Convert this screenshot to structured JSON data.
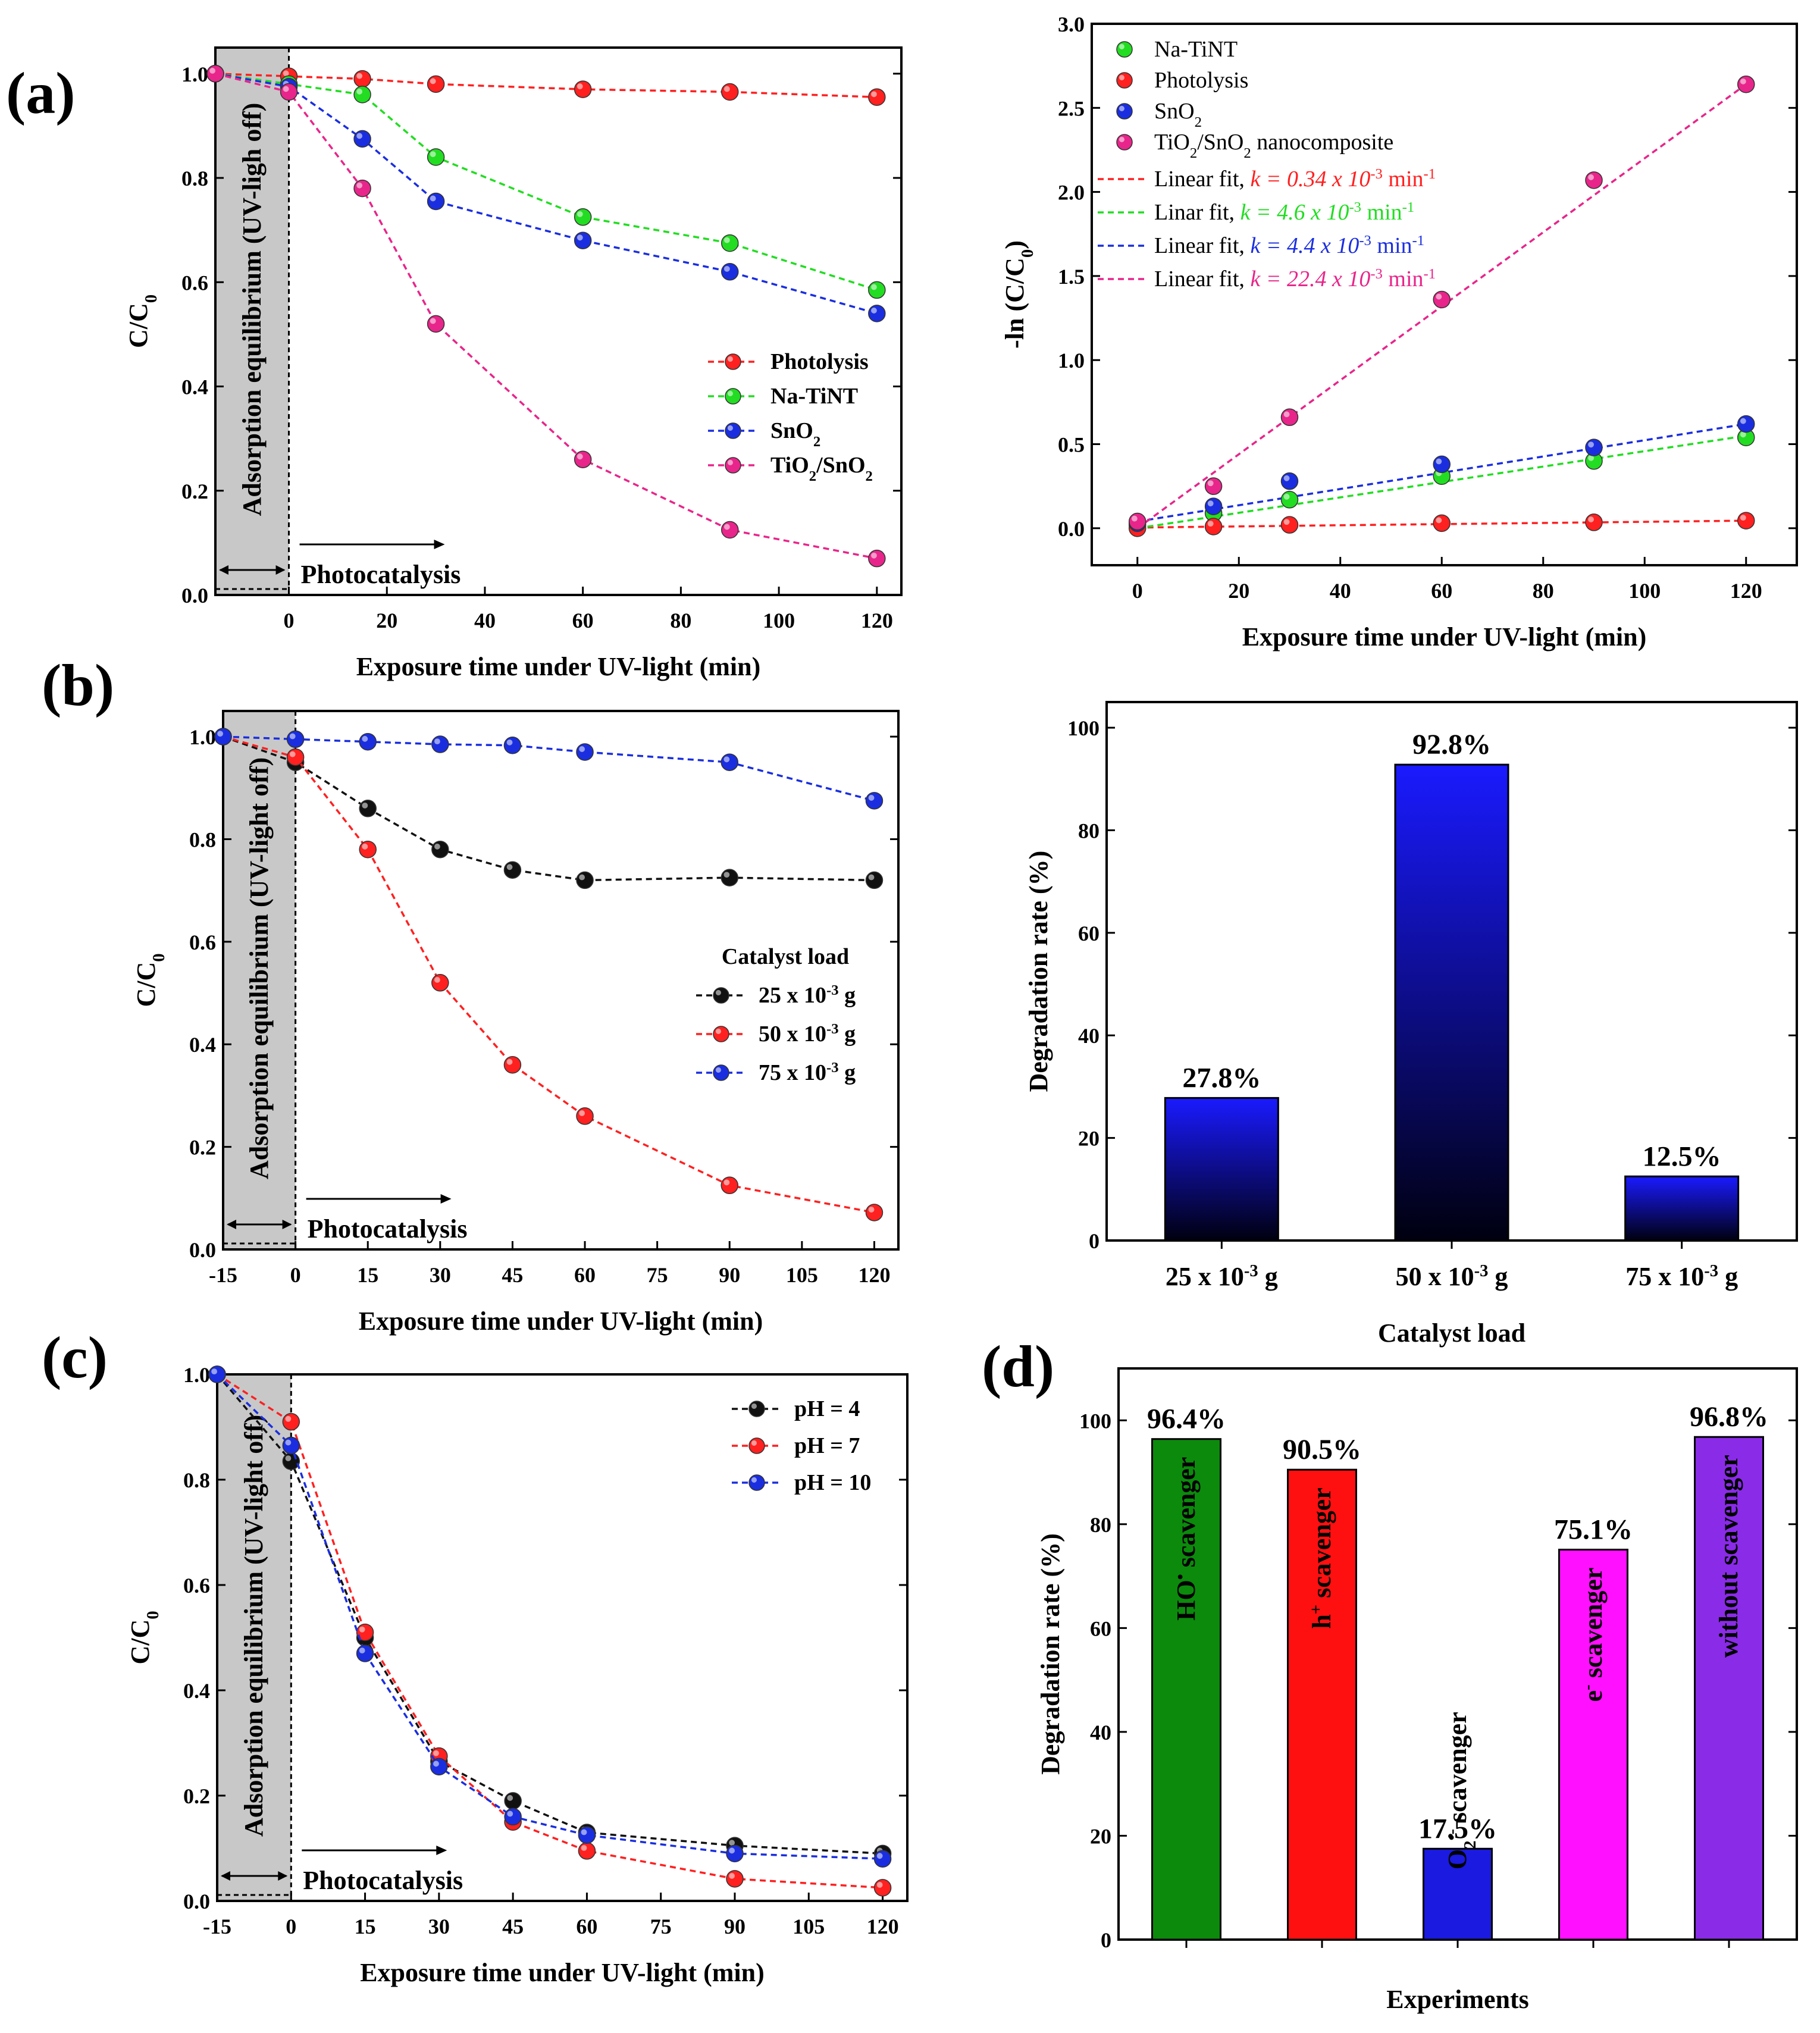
{
  "panel_labels": {
    "a": "(a)",
    "b": "(b)",
    "c": "(c)",
    "d": "(d)"
  },
  "chart_data": [
    {
      "id": "a1",
      "type": "line",
      "xlabel": "Exposure time under UV-light (min)",
      "ylabel": "C/C0",
      "xlim": [
        -15,
        125
      ],
      "ylim": [
        0,
        1.05
      ],
      "xticks": [
        0,
        20,
        40,
        60,
        80,
        100,
        120
      ],
      "yticks": [
        0.0,
        0.2,
        0.4,
        0.6,
        0.8,
        1.0
      ],
      "shaded_region": {
        "from": -15,
        "to": 0,
        "label": "Adsorption equilibrium (UV-ligh off)"
      },
      "annotation": "Photocatalysis",
      "legend_position": "center-right",
      "series": [
        {
          "name": "Photolysis",
          "color": "#ff2020",
          "x": [
            -15,
            0,
            15,
            30,
            60,
            90,
            120
          ],
          "y": [
            1.0,
            0.995,
            0.99,
            0.98,
            0.97,
            0.965,
            0.955
          ]
        },
        {
          "name": "Na-TiNT",
          "color": "#22dd22",
          "x": [
            -15,
            0,
            15,
            30,
            60,
            90,
            120
          ],
          "y": [
            1.0,
            0.98,
            0.96,
            0.84,
            0.725,
            0.675,
            0.585
          ]
        },
        {
          "name": "SnO2",
          "color": "#1a2ee0",
          "x": [
            -15,
            0,
            15,
            30,
            60,
            90,
            120
          ],
          "y": [
            1.0,
            0.975,
            0.875,
            0.755,
            0.68,
            0.62,
            0.54
          ]
        },
        {
          "name": "TiO2/SnO2",
          "color": "#e8258a",
          "x": [
            -15,
            0,
            15,
            30,
            60,
            90,
            120
          ],
          "y": [
            1.0,
            0.965,
            0.78,
            0.52,
            0.26,
            0.125,
            0.07
          ]
        }
      ]
    },
    {
      "id": "a2",
      "type": "scatter",
      "xlabel": "Exposure time under UV-light (min)",
      "ylabel": "-ln (C/C0)",
      "xlim": [
        -9,
        130
      ],
      "ylim": [
        -0.22,
        3.0
      ],
      "xticks": [
        0,
        20,
        40,
        60,
        80,
        100,
        120
      ],
      "yticks": [
        0.0,
        0.5,
        1.0,
        1.5,
        2.0,
        2.5,
        3.0
      ],
      "legend_position": "top-left",
      "series": [
        {
          "name": "Na-TiNT",
          "color": "#22dd22",
          "x": [
            0,
            15,
            30,
            60,
            90,
            120
          ],
          "y": [
            0.02,
            0.09,
            0.17,
            0.31,
            0.4,
            0.54
          ]
        },
        {
          "name": "Photolysis",
          "color": "#ff2020",
          "x": [
            0,
            15,
            30,
            60,
            90,
            120
          ],
          "y": [
            0.0,
            0.01,
            0.02,
            0.03,
            0.035,
            0.045
          ]
        },
        {
          "name": "SnO2",
          "color": "#1a2ee0",
          "x": [
            0,
            15,
            30,
            60,
            90,
            120
          ],
          "y": [
            0.03,
            0.13,
            0.28,
            0.38,
            0.48,
            0.62
          ]
        },
        {
          "name": "TiO2/SnO2 nanocomposite",
          "color": "#e8258a",
          "x": [
            0,
            15,
            30,
            60,
            90,
            120
          ],
          "y": [
            0.04,
            0.25,
            0.66,
            1.36,
            2.07,
            2.64
          ]
        }
      ],
      "fits": [
        {
          "label": "Linear fit, k = 0.34 x 10-3 min-1",
          "color": "#ff2020",
          "y0": 0.004,
          "y1": 0.045
        },
        {
          "label": "Linar fit, k = 4.6 x 10-3 min-1",
          "color": "#22dd22",
          "y0": 0.0,
          "y1": 0.55
        },
        {
          "label": "Linear fit, k = 4.4 x 10-3 min-1",
          "color": "#1a2ee0",
          "y0": 0.04,
          "y1": 0.62
        },
        {
          "label": "Linear fit, k = 22.4 x 10-3 min-1",
          "color": "#e8258a",
          "y0": 0.0,
          "y1": 2.64
        }
      ]
    },
    {
      "id": "b1",
      "type": "line",
      "xlabel": "Exposure time under UV-light (min)",
      "ylabel": "C/C0",
      "xlim": [
        -15,
        125
      ],
      "ylim": [
        0,
        1.05
      ],
      "xticks": [
        -15,
        0,
        15,
        30,
        45,
        60,
        75,
        90,
        105,
        120
      ],
      "yticks": [
        0.0,
        0.2,
        0.4,
        0.6,
        0.8,
        1.0
      ],
      "shaded_region": {
        "from": -15,
        "to": 0,
        "label": "Adsorption equilibrium (UV-light off)"
      },
      "annotation": "Photocatalysis",
      "legend_title": "Catalyst load",
      "legend_position": "center-right",
      "series": [
        {
          "name": "25 x 10-3 g",
          "color": "#111111",
          "x": [
            -15,
            0,
            15,
            30,
            45,
            60,
            90,
            120
          ],
          "y": [
            1.0,
            0.95,
            0.86,
            0.78,
            0.74,
            0.72,
            0.725,
            0.72
          ]
        },
        {
          "name": "50 x 10-3 g",
          "color": "#ff2020",
          "x": [
            -15,
            0,
            15,
            30,
            45,
            60,
            90,
            120
          ],
          "y": [
            1.0,
            0.96,
            0.78,
            0.52,
            0.36,
            0.26,
            0.125,
            0.072
          ]
        },
        {
          "name": "75 x 10-3 g",
          "color": "#1a2ee0",
          "x": [
            -15,
            0,
            15,
            30,
            45,
            60,
            90,
            120
          ],
          "y": [
            1.0,
            0.995,
            0.99,
            0.985,
            0.983,
            0.97,
            0.95,
            0.875
          ]
        }
      ]
    },
    {
      "id": "b2",
      "type": "bar",
      "xlabel": "Catalyst load",
      "ylabel": "Degradation rate (%)",
      "ylim": [
        0,
        105
      ],
      "yticks": [
        0,
        20,
        40,
        60,
        80,
        100
      ],
      "categories": [
        "25 x 10-3 g",
        "50 x 10-3 g",
        "75 x 10-3 g"
      ],
      "values": [
        27.8,
        92.8,
        12.5
      ],
      "data_labels": [
        "27.8%",
        "92.8%",
        "12.5%"
      ]
    },
    {
      "id": "c",
      "type": "line",
      "xlabel": "Exposure time under UV-light (min)",
      "ylabel": "C/C0",
      "xlim": [
        -15,
        125
      ],
      "ylim": [
        0,
        1.0
      ],
      "xticks": [
        -15,
        0,
        15,
        30,
        45,
        60,
        75,
        90,
        105,
        120
      ],
      "yticks": [
        0.0,
        0.2,
        0.4,
        0.6,
        0.8,
        1.0
      ],
      "shaded_region": {
        "from": -15,
        "to": 0,
        "label": "Adsorption equilibrium (UV-light off)"
      },
      "annotation": "Photocatalysis",
      "legend_position": "top-right",
      "series": [
        {
          "name": "pH = 4",
          "color": "#111111",
          "x": [
            -15,
            0,
            15,
            30,
            45,
            60,
            90,
            120
          ],
          "y": [
            1.0,
            0.835,
            0.5,
            0.265,
            0.19,
            0.13,
            0.105,
            0.09
          ]
        },
        {
          "name": "pH = 7",
          "color": "#ff2020",
          "x": [
            -15,
            0,
            15,
            30,
            45,
            60,
            90,
            120
          ],
          "y": [
            1.0,
            0.91,
            0.51,
            0.275,
            0.15,
            0.095,
            0.042,
            0.025
          ]
        },
        {
          "name": "pH = 10",
          "color": "#1a2ee0",
          "x": [
            -15,
            0,
            15,
            30,
            45,
            60,
            90,
            120
          ],
          "y": [
            1.0,
            0.865,
            0.47,
            0.255,
            0.16,
            0.125,
            0.09,
            0.08
          ]
        }
      ]
    },
    {
      "id": "d",
      "type": "bar",
      "xlabel": "Experiments",
      "ylabel": "Degradation rate (%)",
      "ylim": [
        0,
        110
      ],
      "yticks": [
        0,
        20,
        40,
        60,
        80,
        100
      ],
      "categories": [
        "HO• scavenger",
        "h+ scavenger",
        "O2•- scavenger",
        "e- scavenger",
        "without scavenger"
      ],
      "values": [
        96.4,
        90.5,
        17.5,
        75.1,
        96.8
      ],
      "data_labels": [
        "96.4%",
        "90.5%",
        "17.5%",
        "75.1%",
        "96.8%"
      ],
      "colors": [
        "#0c8a0c",
        "#ff1010",
        "#1a1ae0",
        "#ff10ff",
        "#8a2be8"
      ]
    }
  ]
}
